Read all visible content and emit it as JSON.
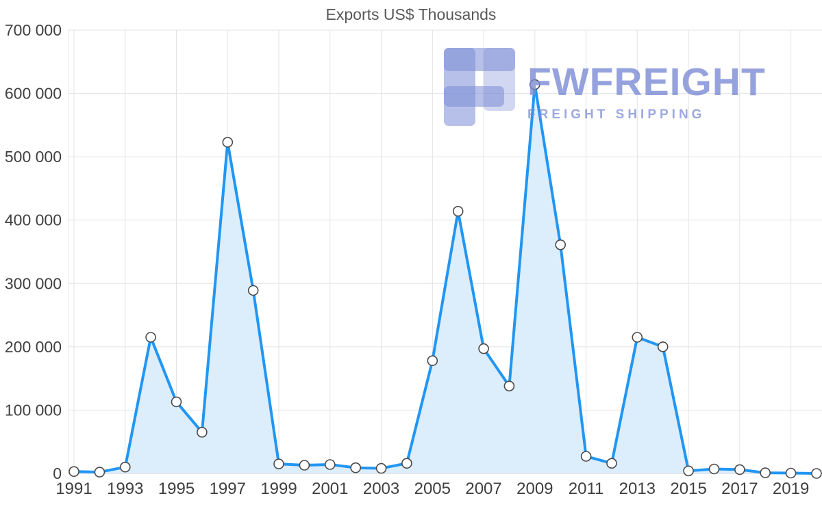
{
  "title": "Exports US$ Thousands",
  "watermark": {
    "brand": "FWFREIGHT",
    "tagline": "FREIGHT SHIPPING"
  },
  "chart_data": {
    "type": "area",
    "title": "Exports US$ Thousands",
    "x": [
      1991,
      1992,
      1993,
      1994,
      1995,
      1996,
      1997,
      1998,
      1999,
      2000,
      2001,
      2002,
      2003,
      2004,
      2005,
      2006,
      2007,
      2008,
      2009,
      2010,
      2011,
      2012,
      2013,
      2014,
      2015,
      2016,
      2017,
      2018,
      2019,
      2020
    ],
    "series": [
      {
        "name": "Exports US$ Thousands",
        "values": [
          3000,
          2000,
          10000,
          215000,
          113000,
          65000,
          523000,
          289000,
          15000,
          13000,
          14000,
          9000,
          8000,
          16000,
          178000,
          414000,
          197000,
          138000,
          614000,
          361000,
          27000,
          16000,
          215000,
          200000,
          4000,
          7000,
          6000,
          1000,
          500,
          0
        ]
      }
    ],
    "ylim": [
      0,
      700000
    ],
    "ytick_interval": 100000,
    "ytick_labels": [
      "0",
      "100 000",
      "200 000",
      "300 000",
      "400 000",
      "500 000",
      "600 000",
      "700 000"
    ],
    "xtick_labels": [
      "1991",
      "1993",
      "1995",
      "1997",
      "1999",
      "2001",
      "2003",
      "2005",
      "2007",
      "2009",
      "2011",
      "2013",
      "2015",
      "2017",
      "2019"
    ],
    "grid": true,
    "legend_position": "none",
    "colors": {
      "line": "#2196f3",
      "area_fill": "#dcedfc",
      "marker_fill": "#ffffff",
      "marker_stroke": "#4a4a4a",
      "grid": "#e3e3e3",
      "baseline": "#c9c9c9",
      "axis_text": "#3f3f3f",
      "title_text": "#585858",
      "watermark": "#7c8cd5"
    }
  }
}
